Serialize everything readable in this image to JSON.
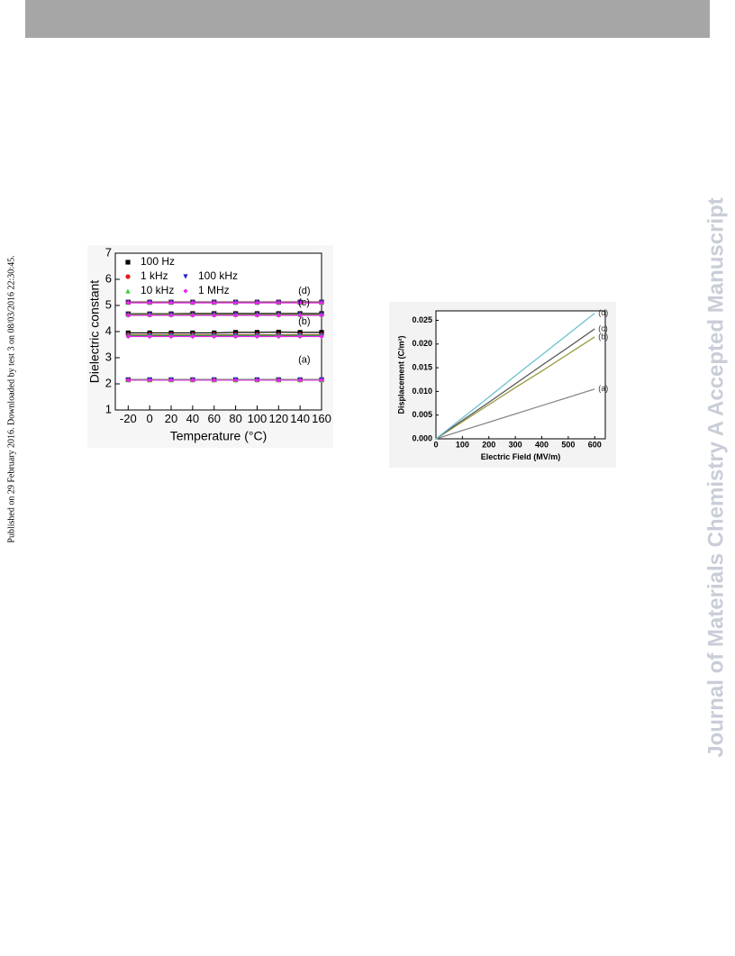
{
  "side_note": "Published on 29 February 2016. Downloaded by test 3 on 08/03/2016 22:30:45.",
  "watermark": "Journal of Materials Chemistry A Accepted Manuscript",
  "chart_data": [
    {
      "type": "scatter",
      "xlabel": "Temperature (°C)",
      "ylabel": "Dielectric constant",
      "x": [
        -20,
        0,
        20,
        40,
        60,
        80,
        100,
        120,
        140,
        160
      ],
      "xlim": [
        -32,
        160
      ],
      "ylim": [
        1,
        7
      ],
      "xticks": [
        -20,
        0,
        20,
        40,
        60,
        80,
        100,
        120,
        140,
        160
      ],
      "yticks": [
        1,
        2,
        3,
        4,
        5,
        6,
        7
      ],
      "annotations": [
        "(a)",
        "(b)",
        "(c)",
        "(d)"
      ],
      "series": [
        {
          "name": "100 Hz",
          "color": "#000000",
          "marker": "square",
          "curves": [
            [
              2.16,
              2.16,
              2.16,
              2.16,
              2.16,
              2.16,
              2.16,
              2.16,
              2.16,
              2.16
            ],
            [
              3.95,
              3.95,
              3.95,
              3.95,
              3.95,
              3.97,
              3.97,
              3.98,
              3.97,
              3.97
            ],
            [
              4.68,
              4.68,
              4.68,
              4.69,
              4.69,
              4.69,
              4.69,
              4.69,
              4.69,
              4.69
            ],
            [
              5.13,
              5.13,
              5.13,
              5.13,
              5.13,
              5.13,
              5.13,
              5.13,
              5.13,
              5.13
            ]
          ]
        },
        {
          "name": "1 kHz",
          "color": "#e41a1c",
          "marker": "circle",
          "curves": [
            [
              2.15,
              2.15,
              2.15,
              2.15,
              2.15,
              2.15,
              2.15,
              2.15,
              2.15,
              2.15
            ],
            [
              3.88,
              3.88,
              3.88,
              3.88,
              3.88,
              3.88,
              3.88,
              3.88,
              3.88,
              3.88
            ],
            [
              4.66,
              4.66,
              4.66,
              4.66,
              4.66,
              4.66,
              4.66,
              4.66,
              4.66,
              4.66
            ],
            [
              5.12,
              5.12,
              5.12,
              5.12,
              5.12,
              5.12,
              5.12,
              5.12,
              5.12,
              5.12
            ]
          ]
        },
        {
          "name": "100 kHz",
          "color": "#1f1fd0",
          "marker": "triangle-down",
          "curves": [
            [
              2.15,
              2.15,
              2.15,
              2.15,
              2.15,
              2.15,
              2.15,
              2.15,
              2.15,
              2.15
            ],
            [
              3.84,
              3.84,
              3.84,
              3.84,
              3.84,
              3.84,
              3.84,
              3.84,
              3.84,
              3.84
            ],
            [
              4.64,
              4.64,
              4.64,
              4.64,
              4.64,
              4.64,
              4.64,
              4.64,
              4.64,
              4.64
            ],
            [
              5.11,
              5.11,
              5.11,
              5.11,
              5.11,
              5.11,
              5.11,
              5.11,
              5.11,
              5.11
            ]
          ]
        },
        {
          "name": "10 kHz",
          "color": "#33cc33",
          "marker": "triangle-up",
          "curves": [
            [
              2.15,
              2.15,
              2.15,
              2.15,
              2.15,
              2.15,
              2.15,
              2.15,
              2.15,
              2.15
            ],
            [
              3.86,
              3.86,
              3.86,
              3.86,
              3.86,
              3.86,
              3.86,
              3.86,
              3.86,
              3.86
            ],
            [
              4.65,
              4.65,
              4.65,
              4.65,
              4.65,
              4.65,
              4.65,
              4.65,
              4.65,
              4.65
            ],
            [
              5.11,
              5.11,
              5.11,
              5.11,
              5.11,
              5.11,
              5.11,
              5.11,
              5.11,
              5.11
            ]
          ]
        },
        {
          "name": "1 MHz",
          "color": "#ee22ee",
          "marker": "diamond",
          "curves": [
            [
              2.14,
              2.14,
              2.14,
              2.14,
              2.14,
              2.14,
              2.14,
              2.14,
              2.14,
              2.14
            ],
            [
              3.81,
              3.81,
              3.81,
              3.81,
              3.81,
              3.81,
              3.81,
              3.81,
              3.81,
              3.81
            ],
            [
              4.62,
              4.62,
              4.62,
              4.62,
              4.62,
              4.62,
              4.62,
              4.62,
              4.62,
              4.62
            ],
            [
              5.1,
              5.1,
              5.1,
              5.1,
              5.1,
              5.1,
              5.1,
              5.1,
              5.1,
              5.1
            ]
          ]
        }
      ]
    },
    {
      "type": "line",
      "xlabel": "Electric Field (MV/m)",
      "ylabel": "Displacement (C/m²)",
      "x": [
        0,
        100,
        200,
        300,
        400,
        500,
        600
      ],
      "xlim": [
        0,
        640
      ],
      "ylim": [
        0,
        0.027
      ],
      "xticks": [
        0,
        100,
        200,
        300,
        400,
        500,
        600
      ],
      "yticks": [
        {
          "value": 0,
          "label": "0.000"
        },
        {
          "value": 0.005,
          "label": "0.005"
        },
        {
          "value": 0.01,
          "label": "0.010"
        },
        {
          "value": 0.015,
          "label": "0.015"
        },
        {
          "value": 0.02,
          "label": "0.020"
        },
        {
          "value": 0.025,
          "label": "0.025"
        }
      ],
      "series": [
        {
          "name": "(a)",
          "color": "#888888",
          "values": [
            0,
            0.00175,
            0.0035,
            0.00525,
            0.007,
            0.00875,
            0.0105
          ]
        },
        {
          "name": "(b)",
          "color": "#9a9a40",
          "values": [
            0,
            0.0036,
            0.0072,
            0.0108,
            0.0143,
            0.0179,
            0.0215
          ]
        },
        {
          "name": "(c)",
          "color": "#555555",
          "values": [
            0,
            0.0039,
            0.0077,
            0.0116,
            0.0155,
            0.0193,
            0.0232
          ]
        },
        {
          "name": "(d)",
          "color": "#6cc0d0",
          "values": [
            0,
            0.0044,
            0.0088,
            0.0133,
            0.0177,
            0.0221,
            0.0265
          ]
        }
      ]
    }
  ]
}
